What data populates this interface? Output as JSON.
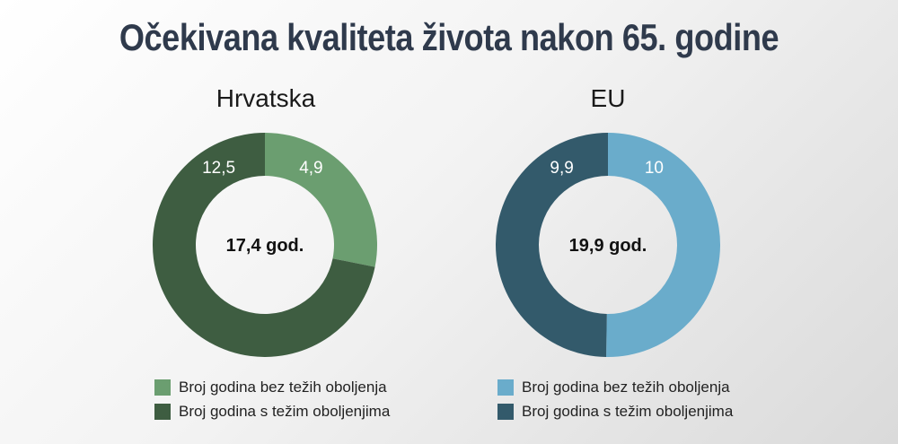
{
  "title": "Očekivana kvaliteta života nakon 65. godine",
  "chart_data": [
    {
      "type": "pie",
      "title": "Hrvatska",
      "center_label": "17,4 god.",
      "slices": [
        {
          "name": "Broj godina bez težih oboljenja",
          "value": 4.9,
          "label": "4,9",
          "color": "#6b9e70"
        },
        {
          "name": "Broj godina s težim oboljenjima",
          "value": 12.5,
          "label": "12,5",
          "color": "#3e5d41"
        }
      ]
    },
    {
      "type": "pie",
      "title": "EU",
      "center_label": "19,9 god.",
      "slices": [
        {
          "name": "Broj godina bez težih oboljenja",
          "value": 10,
          "label": "10",
          "color": "#6aaccb"
        },
        {
          "name": "Broj godina s težim oboljenjima",
          "value": 9.9,
          "label": "9,9",
          "color": "#335a6b"
        }
      ]
    }
  ]
}
